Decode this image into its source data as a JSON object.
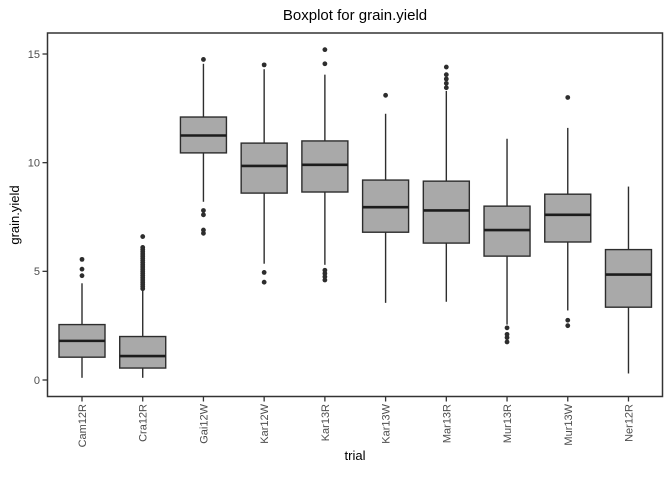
{
  "window": {
    "background": "#ffffff"
  },
  "chart_data": {
    "type": "boxplot",
    "title": "Boxplot for grain.yield",
    "xlabel": "trial",
    "ylabel": "grain.yield",
    "ylim": [
      -0.75,
      15.95
    ],
    "yticks": [
      0,
      5,
      10,
      15
    ],
    "grid": false,
    "legend": "none",
    "categories": [
      "Cam12R",
      "Cra12R",
      "Gai12W",
      "Kar12W",
      "Kar13R",
      "Kar13W",
      "Mar13R",
      "Mur13R",
      "Mur13W",
      "Ner12R"
    ],
    "boxes": [
      {
        "label": "Cam12R",
        "whisker_low": 0.1,
        "q1": 1.05,
        "median": 1.8,
        "q3": 2.55,
        "whisker_high": 4.45,
        "outliers": [
          4.8,
          5.1,
          5.55
        ]
      },
      {
        "label": "Cra12R",
        "whisker_low": 0.1,
        "q1": 0.55,
        "median": 1.1,
        "q3": 2.0,
        "whisker_high": 4.15,
        "outliers": [
          4.2,
          4.3,
          4.4,
          4.5,
          4.6,
          4.7,
          4.8,
          4.9,
          5.0,
          5.1,
          5.2,
          5.3,
          5.4,
          5.5,
          5.6,
          5.7,
          5.8,
          5.9,
          6.0,
          6.1,
          6.6
        ]
      },
      {
        "label": "Gai12W",
        "whisker_low": 8.2,
        "q1": 10.45,
        "median": 11.25,
        "q3": 12.1,
        "whisker_high": 14.55,
        "outliers": [
          6.75,
          6.9,
          7.6,
          7.8,
          14.75
        ]
      },
      {
        "label": "Kar12W",
        "whisker_low": 5.35,
        "q1": 8.6,
        "median": 9.85,
        "q3": 10.9,
        "whisker_high": 14.3,
        "outliers": [
          4.5,
          4.95,
          14.5
        ]
      },
      {
        "label": "Kar13R",
        "whisker_low": 5.3,
        "q1": 8.65,
        "median": 9.9,
        "q3": 11.0,
        "whisker_high": 14.05,
        "outliers": [
          4.6,
          4.75,
          4.9,
          5.05,
          14.55,
          15.2
        ]
      },
      {
        "label": "Kar13W",
        "whisker_low": 3.55,
        "q1": 6.8,
        "median": 7.95,
        "q3": 9.2,
        "whisker_high": 12.25,
        "outliers": [
          13.1
        ]
      },
      {
        "label": "Mar13R",
        "whisker_low": 3.6,
        "q1": 6.3,
        "median": 7.8,
        "q3": 9.15,
        "whisker_high": 13.3,
        "outliers": [
          13.45,
          13.65,
          13.85,
          14.05,
          14.4
        ]
      },
      {
        "label": "Mur13R",
        "whisker_low": 2.55,
        "q1": 5.7,
        "median": 6.9,
        "q3": 8.0,
        "whisker_high": 11.1,
        "outliers": [
          1.75,
          1.95,
          2.1,
          2.4
        ]
      },
      {
        "label": "Mur13W",
        "whisker_low": 3.2,
        "q1": 6.35,
        "median": 7.6,
        "q3": 8.55,
        "whisker_high": 11.6,
        "outliers": [
          2.5,
          2.75,
          13.0
        ]
      },
      {
        "label": "Ner12R",
        "whisker_low": 0.3,
        "q1": 3.35,
        "median": 4.85,
        "q3": 6.0,
        "whisker_high": 8.9,
        "outliers": []
      }
    ],
    "colors": {
      "box_fill": "#a9a9a9",
      "box_stroke": "#2d2d2d",
      "median_stroke": "#1c1c1c",
      "outlier_fill": "#2d2d2d",
      "panel_border": "#333333",
      "tick_mark": "#333333",
      "tick_label": "#4d4d4d",
      "axis_title": "#000000",
      "title": "#000000"
    }
  }
}
